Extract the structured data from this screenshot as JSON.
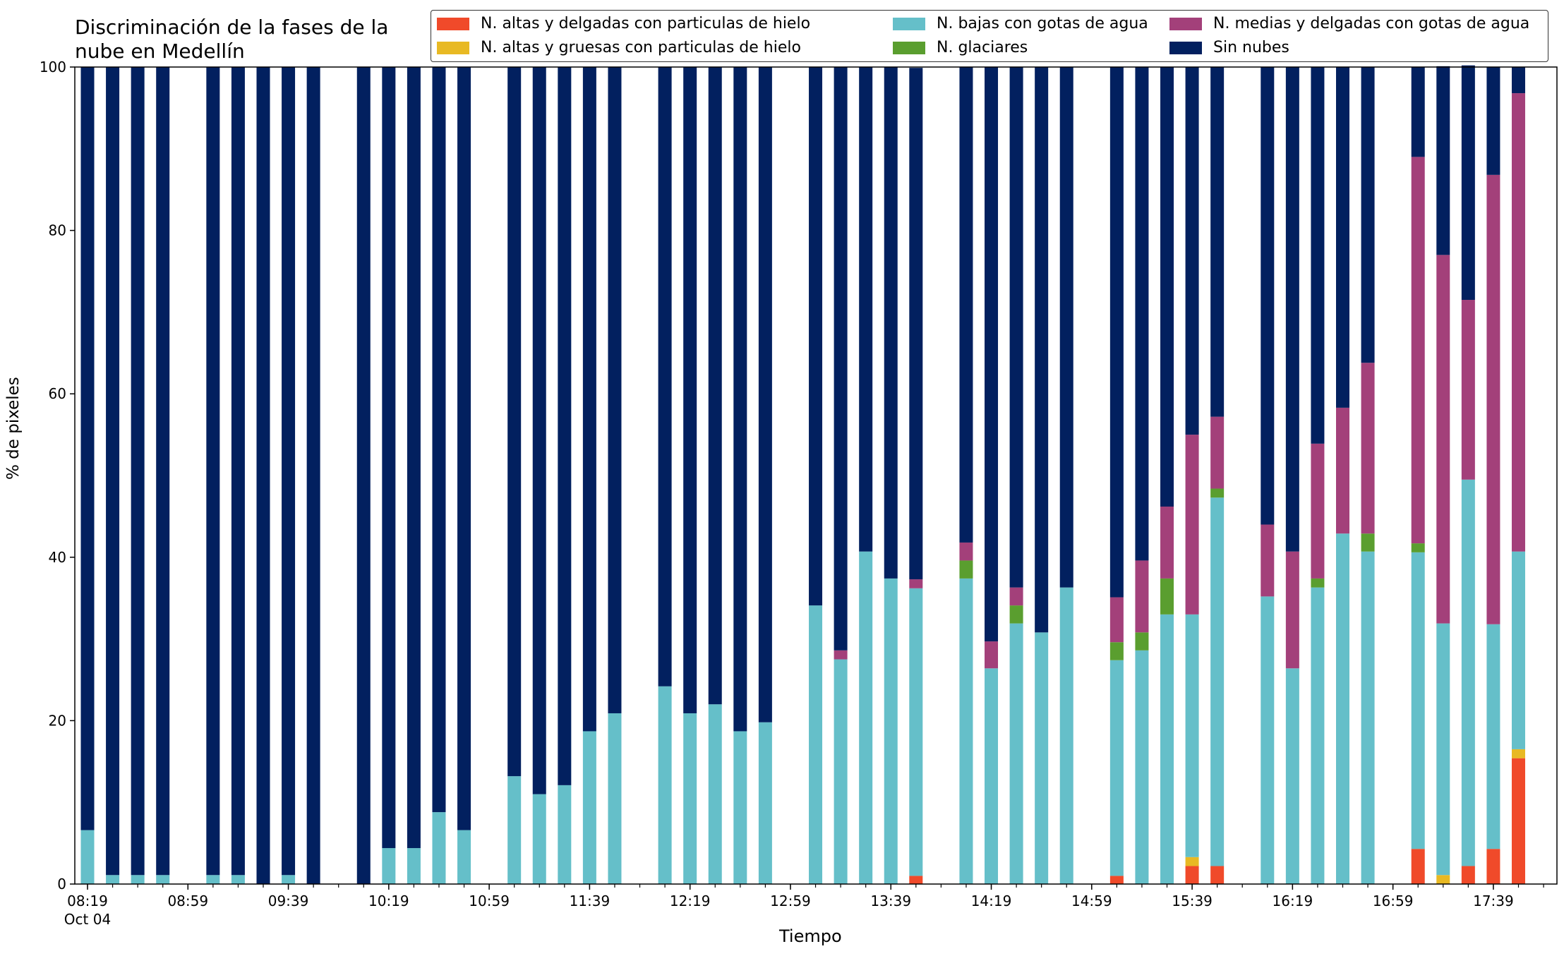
{
  "chart_data": {
    "type": "bar",
    "stacked": true,
    "title_line1": "Discriminación de la fases de la",
    "title_line2": "nube en Medellín",
    "xlabel": "Tiempo",
    "ylabel": "% de pixeles",
    "ylim": [
      0,
      100
    ],
    "yticks": [
      "0",
      "20",
      "40",
      "60",
      "80",
      "100"
    ],
    "xtick_labels": [
      "08:19",
      "08:59",
      "09:39",
      "10:19",
      "10:59",
      "11:39",
      "12:19",
      "12:59",
      "13:39",
      "14:19",
      "14:59",
      "15:39",
      "16:19",
      "16:59",
      "17:39"
    ],
    "x_date_label": "Oct 04",
    "legend_position": "top-right",
    "x": [
      "08:19",
      "08:29",
      "08:39",
      "08:49",
      "09:09",
      "09:19",
      "09:29",
      "09:39",
      "09:49",
      "10:09",
      "10:19",
      "10:29",
      "10:39",
      "10:49",
      "11:09",
      "11:19",
      "11:29",
      "11:39",
      "11:49",
      "12:09",
      "12:19",
      "12:29",
      "12:39",
      "12:49",
      "13:09",
      "13:19",
      "13:29",
      "13:39",
      "13:49",
      "14:09",
      "14:19",
      "14:29",
      "14:39",
      "14:49",
      "15:09",
      "15:19",
      "15:29",
      "15:39",
      "15:49",
      "16:09",
      "16:19",
      "16:29",
      "16:39",
      "16:49",
      "17:09",
      "17:19",
      "17:29",
      "17:39",
      "17:49"
    ],
    "series": [
      {
        "name": "N. altas y delgadas con particulas de hielo",
        "color": "#f04a2a",
        "values": [
          0,
          0,
          0,
          0,
          0,
          0,
          0,
          0,
          0,
          0,
          0,
          0,
          0,
          0,
          0,
          0,
          0,
          0,
          0,
          0,
          0,
          0,
          0,
          0,
          0,
          0,
          0,
          0,
          1,
          0,
          0,
          0,
          0,
          0,
          1,
          0,
          0,
          2.2,
          2.2,
          0,
          0,
          0,
          0,
          0,
          4.3,
          0,
          2.2,
          4.3,
          15.4
        ]
      },
      {
        "name": "N. altas y gruesas con particulas de hielo",
        "color": "#e8b923",
        "values": [
          0,
          0,
          0,
          0,
          0,
          0,
          0,
          0,
          0,
          0,
          0,
          0,
          0,
          0,
          0,
          0,
          0,
          0,
          0,
          0,
          0,
          0,
          0,
          0,
          0,
          0,
          0,
          0,
          0,
          0,
          0,
          0,
          0,
          0,
          0,
          0,
          0,
          1.1,
          0,
          0,
          0,
          0,
          0,
          0,
          0,
          1.1,
          0,
          0,
          1.1
        ]
      },
      {
        "name": "N. bajas con gotas de agua",
        "color": "#65bfc9",
        "values": [
          6.6,
          1.1,
          1.1,
          1.1,
          1.1,
          1.1,
          0,
          1.1,
          0,
          0,
          4.4,
          4.4,
          8.8,
          6.6,
          13.2,
          11,
          12.1,
          18.7,
          20.9,
          24.2,
          20.9,
          22,
          18.7,
          19.8,
          34.1,
          27.5,
          40.7,
          37.4,
          35.2,
          37.4,
          26.4,
          31.9,
          30.8,
          36.3,
          26.4,
          28.6,
          33,
          29.7,
          45.1,
          35.2,
          26.4,
          36.3,
          42.9,
          40.7,
          36.3,
          30.8,
          47.3,
          27.5,
          24.2
        ]
      },
      {
        "name": "N. glaciares",
        "color": "#5a9e2f",
        "values": [
          0,
          0,
          0,
          0,
          0,
          0,
          0,
          0,
          0,
          0,
          0,
          0,
          0,
          0,
          0,
          0,
          0,
          0,
          0,
          0,
          0,
          0,
          0,
          0,
          0,
          0,
          0,
          0,
          0,
          2.2,
          0,
          2.2,
          0,
          0,
          2.2,
          2.2,
          4.4,
          0,
          1.1,
          0,
          0,
          1.1,
          0,
          2.2,
          1.1,
          0,
          0,
          0,
          0
        ]
      },
      {
        "name": "N. medias y delgadas con gotas de agua",
        "color": "#a3407a",
        "values": [
          0,
          0,
          0,
          0,
          0,
          0,
          0,
          0,
          0,
          0,
          0,
          0,
          0,
          0,
          0,
          0,
          0,
          0,
          0,
          0,
          0,
          0,
          0,
          0,
          0,
          1.1,
          0,
          0,
          1.1,
          2.2,
          3.3,
          2.2,
          0,
          0,
          5.5,
          8.8,
          8.8,
          22,
          8.8,
          8.8,
          14.3,
          16.5,
          15.4,
          20.9,
          47.3,
          45.1,
          22,
          55,
          56.1
        ]
      },
      {
        "name": "Sin nubes",
        "color": "#02205f",
        "values": [
          93.4,
          98.9,
          98.9,
          98.9,
          98.9,
          98.9,
          100,
          98.9,
          100,
          100,
          95.6,
          95.6,
          91.2,
          93.4,
          86.8,
          89,
          87.9,
          81.3,
          79.1,
          75.8,
          79.1,
          78,
          81.3,
          80.2,
          65.9,
          71.4,
          59.3,
          62.6,
          62.6,
          58.2,
          70.3,
          63.7,
          69.2,
          63.7,
          64.9,
          60.4,
          53.8,
          45,
          42.8,
          56,
          59.3,
          46.1,
          41.7,
          36.2,
          11,
          23.1,
          28.7,
          13.2,
          3.2
        ]
      }
    ]
  }
}
